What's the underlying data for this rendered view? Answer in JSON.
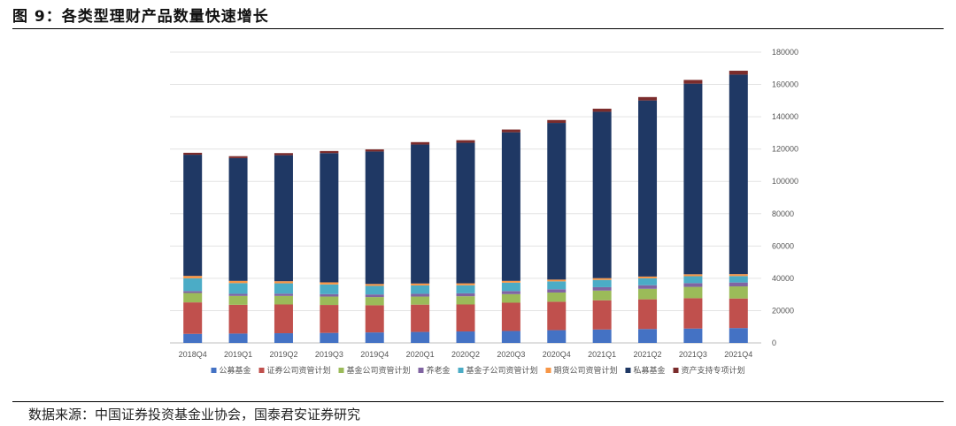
{
  "figure": {
    "title": "图 9：各类型理财产品数量快速增长",
    "source": "数据来源：中国证券投资基金业协会，国泰君安证券研究"
  },
  "chart_data": {
    "type": "bar",
    "stacked": true,
    "categories": [
      "2018Q4",
      "2019Q1",
      "2019Q2",
      "2019Q3",
      "2019Q4",
      "2020Q1",
      "2020Q2",
      "2020Q3",
      "2020Q4",
      "2021Q1",
      "2021Q2",
      "2021Q3",
      "2021Q4"
    ],
    "ylim": [
      0,
      180000
    ],
    "yticks": [
      0,
      20000,
      40000,
      60000,
      80000,
      100000,
      120000,
      140000,
      160000,
      180000
    ],
    "y_axis_side": "right",
    "grid": true,
    "legend_position": "bottom",
    "series": [
      {
        "name": "公募基金",
        "color": "#4472C4",
        "values": [
          5600,
          5800,
          6000,
          6200,
          6500,
          6800,
          7100,
          7400,
          7900,
          8300,
          8600,
          8900,
          9200
        ]
      },
      {
        "name": "证券公司资管计划",
        "color": "#C0504D",
        "values": [
          19500,
          17800,
          17800,
          17300,
          16800,
          16900,
          16700,
          17500,
          17600,
          18100,
          18400,
          18800,
          18300
        ]
      },
      {
        "name": "基金公司资管计划",
        "color": "#9BBB59",
        "values": [
          5800,
          5500,
          5300,
          5200,
          5100,
          5000,
          5100,
          5300,
          5700,
          6000,
          6500,
          7000,
          7500
        ]
      },
      {
        "name": "养老金",
        "color": "#8064A2",
        "values": [
          1200,
          1300,
          1400,
          1500,
          1600,
          1700,
          1800,
          1900,
          2000,
          2100,
          2200,
          2300,
          2400
        ]
      },
      {
        "name": "基金子公司资管计划",
        "color": "#4BACC6",
        "values": [
          7900,
          6600,
          6400,
          6000,
          5300,
          5200,
          5000,
          5200,
          4900,
          4500,
          4300,
          4300,
          4000
        ]
      },
      {
        "name": "期货公司资管计划",
        "color": "#F79646",
        "values": [
          1500,
          1400,
          1300,
          1300,
          1200,
          1200,
          1200,
          1100,
          1100,
          1100,
          1100,
          1200,
          1200
        ]
      },
      {
        "name": "私募基金",
        "color": "#1F3864",
        "values": [
          75000,
          76000,
          78000,
          80000,
          82000,
          86000,
          87000,
          92000,
          97000,
          103000,
          109000,
          118000,
          123500
        ]
      },
      {
        "name": "资产支持专项计划",
        "color": "#7B2C2C",
        "values": [
          1200,
          1200,
          1300,
          1300,
          1300,
          1500,
          1600,
          1700,
          1800,
          1900,
          2100,
          2300,
          2400
        ]
      }
    ]
  }
}
